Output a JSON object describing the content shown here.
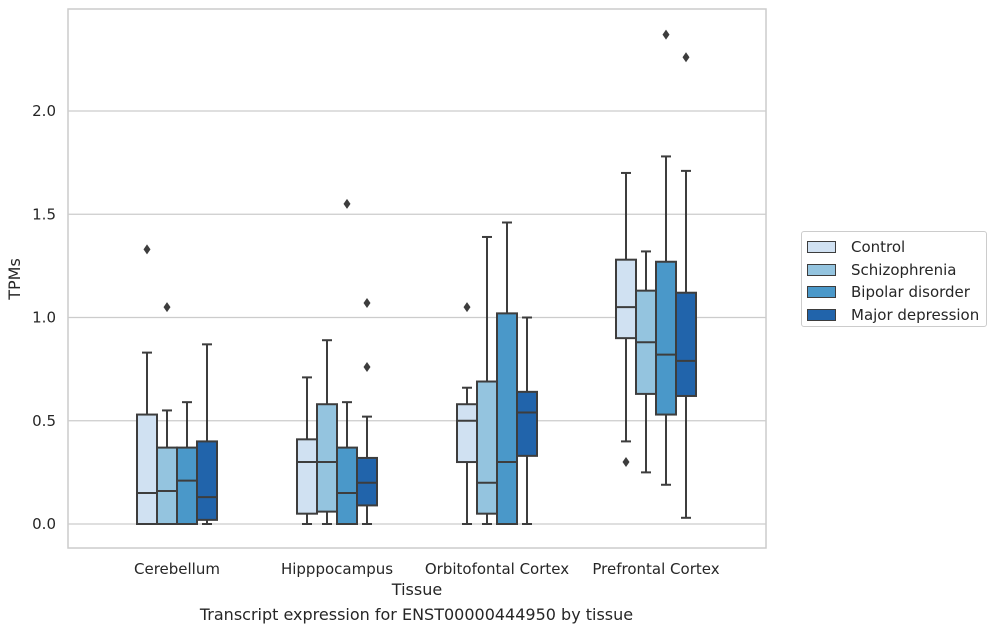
{
  "chart_data": {
    "type": "box",
    "xlabel": "Tissue",
    "ylabel": "TPMs",
    "caption": "Transcript expression for ENST00000444950 by tissue",
    "categories": [
      "Cerebellum",
      "Hipppocampus",
      "Orbitofontal Cortex",
      "Prefrontal Cortex"
    ],
    "ylim": [
      -0.12,
      2.48
    ],
    "yticks": [
      0.0,
      0.5,
      1.0,
      1.5,
      2.0
    ],
    "ytick_labels": [
      "0.0",
      "0.5",
      "1.0",
      "1.5",
      "2.0"
    ],
    "grid": "horizontal",
    "legend_position": "right",
    "series": [
      {
        "name": "Control",
        "color": "#d0e1f2",
        "boxes": [
          {
            "whislo": 0.0,
            "q1": 0.0,
            "med": 0.15,
            "q3": 0.53,
            "whishi": 0.83,
            "fliers": [
              1.33
            ]
          },
          {
            "whislo": 0.0,
            "q1": 0.05,
            "med": 0.3,
            "q3": 0.41,
            "whishi": 0.71,
            "fliers": []
          },
          {
            "whislo": 0.0,
            "q1": 0.3,
            "med": 0.5,
            "q3": 0.58,
            "whishi": 0.66,
            "fliers": [
              1.05
            ]
          },
          {
            "whislo": 0.4,
            "q1": 0.9,
            "med": 1.05,
            "q3": 1.28,
            "whishi": 1.7,
            "fliers": [
              0.3
            ]
          }
        ]
      },
      {
        "name": "Schizophrenia",
        "color": "#94c4df",
        "boxes": [
          {
            "whislo": 0.0,
            "q1": 0.0,
            "med": 0.16,
            "q3": 0.37,
            "whishi": 0.55,
            "fliers": [
              1.05
            ]
          },
          {
            "whislo": 0.0,
            "q1": 0.06,
            "med": 0.3,
            "q3": 0.58,
            "whishi": 0.89,
            "fliers": []
          },
          {
            "whislo": 0.0,
            "q1": 0.05,
            "med": 0.2,
            "q3": 0.69,
            "whishi": 1.39,
            "fliers": []
          },
          {
            "whislo": 0.25,
            "q1": 0.63,
            "med": 0.88,
            "q3": 1.13,
            "whishi": 1.32,
            "fliers": []
          }
        ]
      },
      {
        "name": "Bipolar disorder",
        "color": "#4a98c9",
        "boxes": [
          {
            "whislo": 0.0,
            "q1": 0.0,
            "med": 0.21,
            "q3": 0.37,
            "whishi": 0.59,
            "fliers": []
          },
          {
            "whislo": 0.0,
            "q1": 0.0,
            "med": 0.15,
            "q3": 0.37,
            "whishi": 0.59,
            "fliers": [
              1.55
            ]
          },
          {
            "whislo": 0.0,
            "q1": 0.0,
            "med": 0.3,
            "q3": 1.02,
            "whishi": 1.46,
            "fliers": []
          },
          {
            "whislo": 0.19,
            "q1": 0.53,
            "med": 0.82,
            "q3": 1.27,
            "whishi": 1.78,
            "fliers": [
              2.37
            ]
          }
        ]
      },
      {
        "name": "Major depression",
        "color": "#2164ab",
        "boxes": [
          {
            "whislo": 0.0,
            "q1": 0.02,
            "med": 0.13,
            "q3": 0.4,
            "whishi": 0.87,
            "fliers": []
          },
          {
            "whislo": 0.0,
            "q1": 0.09,
            "med": 0.2,
            "q3": 0.32,
            "whishi": 0.52,
            "fliers": [
              0.76,
              1.07
            ]
          },
          {
            "whislo": 0.0,
            "q1": 0.33,
            "med": 0.54,
            "q3": 0.64,
            "whishi": 1.0,
            "fliers": []
          },
          {
            "whislo": 0.03,
            "q1": 0.62,
            "med": 0.79,
            "q3": 1.12,
            "whishi": 1.71,
            "fliers": [
              2.26
            ]
          }
        ]
      }
    ]
  }
}
